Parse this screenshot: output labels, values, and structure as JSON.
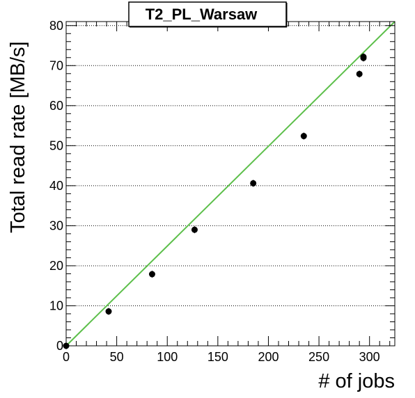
{
  "chart_data": {
    "type": "scatter",
    "title": "T2_PL_Warsaw",
    "xlabel": "# of jobs",
    "ylabel": "Total read rate [MB/s]",
    "xlim": [
      0,
      325
    ],
    "ylim": [
      0,
      81
    ],
    "xticks": [
      0,
      50,
      100,
      150,
      200,
      250,
      300
    ],
    "yticks": [
      0,
      10,
      20,
      30,
      40,
      50,
      60,
      70,
      80
    ],
    "y_grid": true,
    "points": [
      {
        "x": 0,
        "y": 0
      },
      {
        "x": 42,
        "y": 8.6
      },
      {
        "x": 85,
        "y": 17.9
      },
      {
        "x": 127,
        "y": 29.0
      },
      {
        "x": 185,
        "y": 40.6
      },
      {
        "x": 235,
        "y": 52.4
      },
      {
        "x": 290,
        "y": 67.9
      },
      {
        "x": 294,
        "y": 71.9
      },
      {
        "x": 294,
        "y": 72.2
      }
    ],
    "fit_line": {
      "x": [
        0,
        325
      ],
      "y": [
        0,
        81
      ],
      "color": "#5cbf4a"
    },
    "marker_color": "#000000"
  }
}
